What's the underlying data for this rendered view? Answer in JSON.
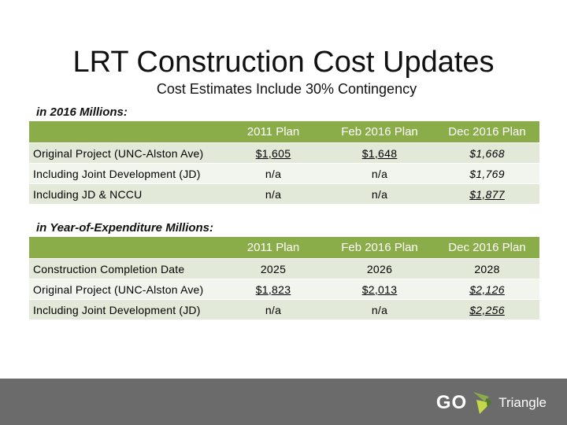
{
  "title": "LRT Construction Cost Updates",
  "subtitle": "Cost Estimates Include 30% Contingency",
  "section1": {
    "label": "in 2016 Millions:",
    "headers": [
      "",
      "2011 Plan",
      "Feb 2016 Plan",
      "Dec 2016 Plan"
    ],
    "rows": [
      {
        "label": "Original Project (UNC-Alston Ave)",
        "c1": "$1,605",
        "c2": "$1,648",
        "c3": "$1,668"
      },
      {
        "label": "Including Joint Development (JD)",
        "c1": "n/a",
        "c2": "n/a",
        "c3": "$1,769"
      },
      {
        "label": "Including JD & NCCU",
        "c1": "n/a",
        "c2": "n/a",
        "c3": "$1,877"
      }
    ]
  },
  "section2": {
    "label": "in Year-of-Expenditure Millions:",
    "headers": [
      "",
      "2011 Plan",
      "Feb 2016 Plan",
      "Dec 2016 Plan"
    ],
    "rows": [
      {
        "label": "Construction Completion Date",
        "c1": "2025",
        "c2": "2026",
        "c3": "2028"
      },
      {
        "label": "Original Project (UNC-Alston Ave)",
        "c1": "$1,823",
        "c2": "$2,013",
        "c3": "$2,126"
      },
      {
        "label": "Including Joint Development (JD)",
        "c1": "n/a",
        "c2": "n/a",
        "c3": "$2,256"
      }
    ]
  },
  "footer": {
    "logo_go": "GO",
    "logo_text": "Triangle",
    "logo_icon": "go-triangle-logo-icon",
    "bar_color": "#6b6b6b",
    "accent_color": "#8aad4a"
  }
}
